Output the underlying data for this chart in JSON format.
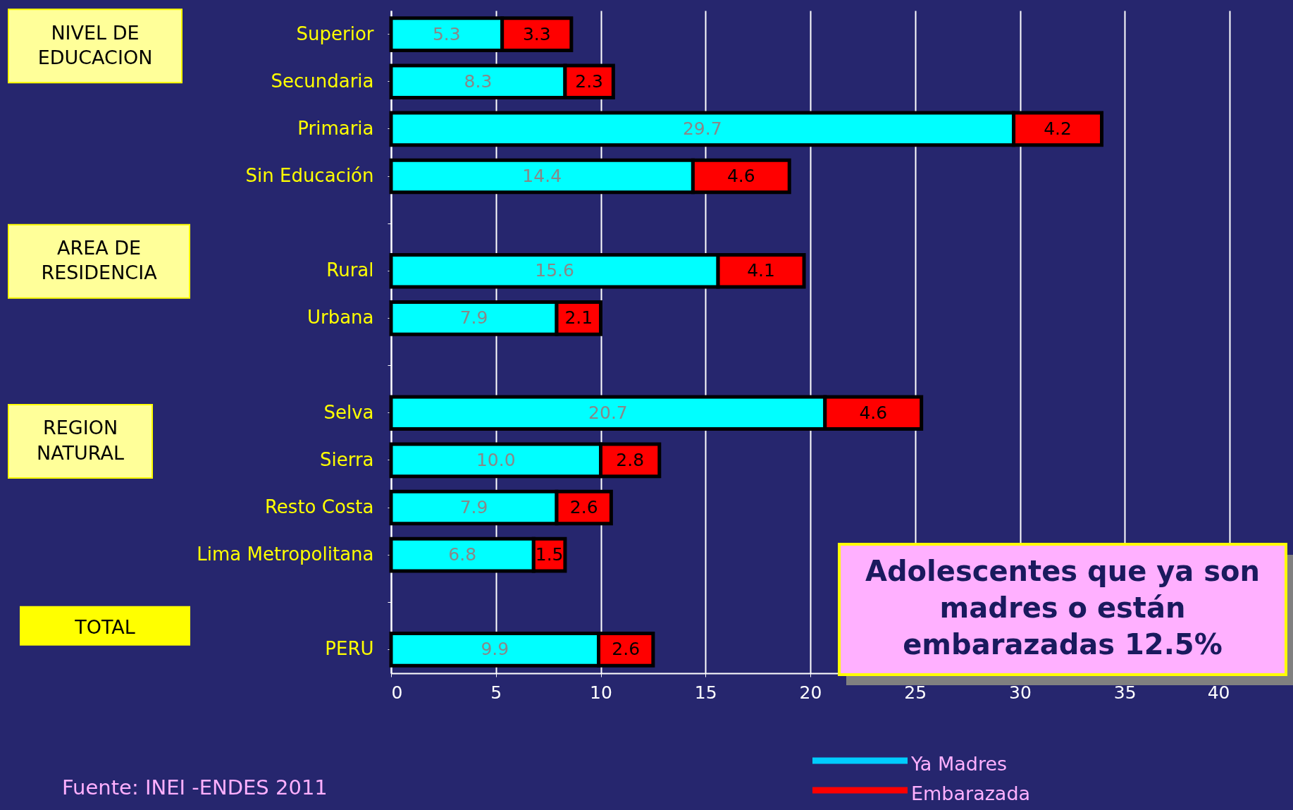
{
  "chart_data": {
    "type": "bar",
    "orientation": "horizontal",
    "stacked": true,
    "categories": [
      "Superior",
      "Secundaria",
      "Primaria",
      "Sin Educación",
      null,
      "Rural",
      "Urbana",
      null,
      "Selva",
      "Sierra",
      "Resto Costa",
      "Lima Metropolitana",
      null,
      "PERU"
    ],
    "series": [
      {
        "name": "Ya Madres",
        "color": "#00ffff",
        "values": [
          5.3,
          8.3,
          29.7,
          14.4,
          null,
          15.6,
          7.9,
          null,
          20.7,
          10.0,
          7.9,
          6.8,
          null,
          9.9
        ],
        "value_labels": [
          "5.3",
          "8.3",
          "29.7",
          "14.4",
          null,
          "15.6",
          "7.9",
          null,
          "20.7",
          "10.0",
          "7.9",
          "6.8",
          null,
          "9.9"
        ]
      },
      {
        "name": "Embarazada",
        "color": "#ff0000",
        "values": [
          3.3,
          2.3,
          4.2,
          4.6,
          null,
          4.1,
          2.1,
          null,
          4.6,
          2.8,
          2.6,
          1.5,
          null,
          2.6
        ],
        "value_labels": [
          "3.3",
          "2.3",
          "4.2",
          "4.6",
          null,
          "4.1",
          "2.1",
          null,
          "4.6",
          "2.8",
          "2.6",
          "1.5",
          null,
          "2.6"
        ]
      }
    ],
    "xlim": [
      0,
      40
    ],
    "xticks": [
      0,
      5,
      10,
      15,
      20,
      25,
      30,
      35,
      40
    ],
    "grid": "x",
    "legend": "bottom",
    "annotations": [
      "NIVEL DE EDUCACION",
      "AREA DE RESIDENCIA",
      "REGION NATURAL",
      "TOTAL",
      "Adolescentes que ya son madres o están embarazadas 12.5%",
      "Fuente: INEI -ENDES 2011"
    ]
  }
}
